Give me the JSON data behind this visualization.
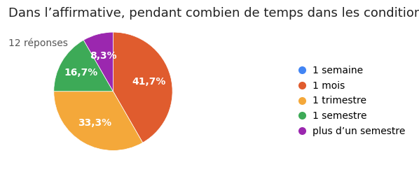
{
  "title": "Dans l’affirmative, pendant combien de temps dans les conditions actuelles ?",
  "subtitle": "12 réponses",
  "labels": [
    "1 semaine",
    "1 mois",
    "1 trimestre",
    "1 semestre",
    "plus d’un semestre"
  ],
  "values": [
    0.0,
    41.7,
    33.3,
    16.7,
    8.3
  ],
  "colors": [
    "#4285f4",
    "#e05c2e",
    "#f4a83a",
    "#3daa57",
    "#9b27af"
  ],
  "pct_labels": [
    "",
    "41,7%",
    "33,3%",
    "16,7%",
    "8,3%"
  ],
  "background_color": "#ffffff",
  "title_fontsize": 13,
  "subtitle_fontsize": 10,
  "legend_fontsize": 10,
  "pct_fontsize": 10,
  "startangle": 90
}
